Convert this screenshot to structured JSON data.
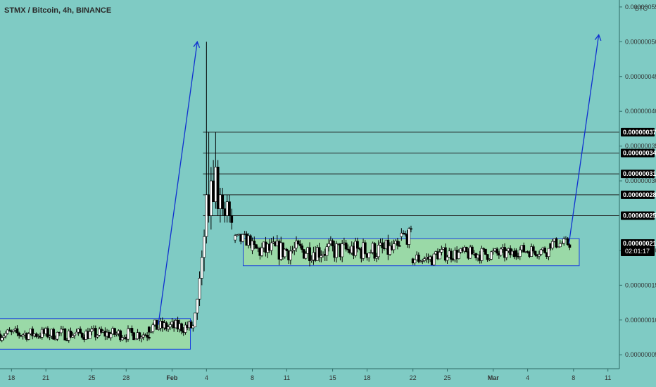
{
  "header": {
    "title": "STMX / Bitcoin, 4h, BINANCE"
  },
  "price_axis": {
    "currency": "BTC",
    "ticks": [
      {
        "label": "0.00000055",
        "value": 55
      },
      {
        "label": "0.00000050",
        "value": 50
      },
      {
        "label": "0.00000045",
        "value": 45
      },
      {
        "label": "0.00000040",
        "value": 40
      },
      {
        "label": "0.00000035",
        "value": 35
      },
      {
        "label": "0.00000030",
        "value": 30
      },
      {
        "label": "0.00000020",
        "value": 20
      },
      {
        "label": "0.00000015",
        "value": 15
      },
      {
        "label": "0.00000010",
        "value": 10
      },
      {
        "label": "0.00000005",
        "value": 5
      }
    ]
  },
  "time_axis": {
    "ticks": [
      {
        "label": "18",
        "bold": false
      },
      {
        "label": "21",
        "bold": false
      },
      {
        "label": "25",
        "bold": false
      },
      {
        "label": "28",
        "bold": false
      },
      {
        "label": "Feb",
        "bold": true
      },
      {
        "label": "4",
        "bold": false
      },
      {
        "label": "8",
        "bold": false
      },
      {
        "label": "11",
        "bold": false
      },
      {
        "label": "15",
        "bold": false
      },
      {
        "label": "18",
        "bold": false
      },
      {
        "label": "22",
        "bold": false
      },
      {
        "label": "25",
        "bold": false
      },
      {
        "label": "Mar",
        "bold": true
      },
      {
        "label": "4",
        "bold": false
      },
      {
        "label": "8",
        "bold": false
      },
      {
        "label": "11",
        "bold": false
      }
    ]
  },
  "levels": [
    {
      "label": "0.00000037",
      "value": 37
    },
    {
      "label": "0.00000034",
      "value": 34
    },
    {
      "label": "0.00000031",
      "value": 31
    },
    {
      "label": "0.00000028",
      "value": 28
    },
    {
      "label": "0.00000025",
      "value": 25
    }
  ],
  "current_price": {
    "label": "0.00000021",
    "value": 21,
    "countdown": "02:01:17"
  },
  "chart_data": {
    "type": "candlestick",
    "symbol": "STMX / Bitcoin",
    "interval": "4h",
    "exchange": "BINANCE",
    "unit": "BTC",
    "y_scale_multiplier": 1e-08,
    "ylim": [
      3,
      56
    ],
    "x_range_days": [
      -15,
      39
    ],
    "x_ticks_days": [
      -14,
      -11,
      -7,
      -4,
      0,
      3,
      7,
      10,
      14,
      17,
      21,
      24,
      28,
      31,
      35,
      38
    ],
    "segments": [
      {
        "from": -15,
        "to": -2,
        "base": 8,
        "amp": 0.9
      },
      {
        "from": -2,
        "to": 2,
        "base": 9,
        "amp": 1.0
      },
      {
        "from": 5.5,
        "to": 7,
        "base": 21.5,
        "amp": 1.0
      },
      {
        "from": 7,
        "to": 20,
        "base": 20,
        "amp": 1.5
      },
      {
        "from": 20,
        "to": 21,
        "base": 22,
        "amp": 1.2
      },
      {
        "from": 21,
        "to": 23,
        "base": 18.8,
        "amp": 1.0
      },
      {
        "from": 23,
        "to": 30,
        "base": 19.5,
        "amp": 1.0
      },
      {
        "from": 30,
        "to": 33,
        "base": 20,
        "amp": 0.9
      },
      {
        "from": 33,
        "to": 34.8,
        "base": 21,
        "amp": 0.8
      }
    ],
    "rally_ohlc": [
      {
        "day": 2.0,
        "o": 9,
        "h": 11,
        "l": 9,
        "c": 11
      },
      {
        "day": 2.2,
        "o": 11,
        "h": 13,
        "l": 10,
        "c": 13
      },
      {
        "day": 2.4,
        "o": 13,
        "h": 17,
        "l": 12,
        "c": 16
      },
      {
        "day": 2.6,
        "o": 16,
        "h": 20,
        "l": 15,
        "c": 19
      },
      {
        "day": 2.8,
        "o": 19,
        "h": 23,
        "l": 17,
        "c": 22
      },
      {
        "day": 3.0,
        "o": 22,
        "h": 50,
        "l": 21,
        "c": 28
      },
      {
        "day": 3.2,
        "o": 28,
        "h": 37,
        "l": 24,
        "c": 25
      },
      {
        "day": 3.4,
        "o": 25,
        "h": 32,
        "l": 23,
        "c": 30
      },
      {
        "day": 3.6,
        "o": 30,
        "h": 33,
        "l": 27,
        "c": 27
      },
      {
        "day": 3.8,
        "o": 27,
        "h": 37,
        "l": 26,
        "c": 32
      },
      {
        "day": 4.0,
        "o": 32,
        "h": 33,
        "l": 25,
        "c": 26
      },
      {
        "day": 4.2,
        "o": 26,
        "h": 29,
        "l": 24,
        "c": 28
      },
      {
        "day": 4.4,
        "o": 28,
        "h": 29,
        "l": 25,
        "c": 26
      },
      {
        "day": 4.6,
        "o": 26,
        "h": 27,
        "l": 24,
        "c": 25
      },
      {
        "day": 4.8,
        "o": 25,
        "h": 28,
        "l": 24,
        "c": 27
      },
      {
        "day": 5.0,
        "o": 27,
        "h": 28,
        "l": 24,
        "c": 25
      },
      {
        "day": 5.2,
        "o": 25,
        "h": 26,
        "l": 23,
        "c": 24
      }
    ],
    "zones": [
      {
        "x0": -15.5,
        "x1": 1.6,
        "y0": 5.8,
        "y1": 10.2,
        "color": "#9ad9a7"
      },
      {
        "x0": 6.2,
        "x1": 35.5,
        "y0": 17.8,
        "y1": 21.7,
        "color": "#9ad9a7"
      }
    ],
    "arrows": [
      {
        "x0": -1.2,
        "y0": 9.3,
        "x1": 2.2,
        "y1": 50
      },
      {
        "x0": 34.6,
        "y0": 21,
        "x1": 37.2,
        "y1": 51
      }
    ],
    "colors": {
      "background": "#7fcbc4",
      "up": "#ffffff",
      "down": "#000000",
      "arrow": "#1030d0",
      "zone_border": "#1a3ee0",
      "level_line": "#222222"
    }
  }
}
